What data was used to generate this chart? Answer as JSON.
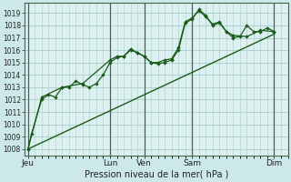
{
  "background_color": "#cce8e8",
  "plot_bg_color": "#ddf0f0",
  "grid_color": "#aacccc",
  "line_color": "#1a5c1a",
  "spine_color": "#446644",
  "title": "Pression niveau de la mer( hPa )",
  "ylim": [
    1007.5,
    1019.8
  ],
  "yticks": [
    1008,
    1009,
    1010,
    1011,
    1012,
    1013,
    1014,
    1015,
    1016,
    1017,
    1018,
    1019
  ],
  "x_day_labels": [
    "Jeu",
    "Lun",
    "Ven",
    "Sam",
    "Dim"
  ],
  "x_day_positions": [
    0,
    12,
    17,
    24,
    36
  ],
  "xlim": [
    -0.5,
    38
  ],
  "series1_x": [
    0,
    0.5,
    2,
    3,
    4,
    5,
    6,
    7,
    8,
    9,
    10,
    11,
    12,
    13,
    14,
    15,
    16,
    17,
    18,
    19,
    20,
    21,
    22,
    23,
    24,
    25,
    26,
    27,
    28,
    29,
    30,
    31,
    32,
    33,
    34,
    35,
    36
  ],
  "series1_y": [
    1008.0,
    1009.2,
    1012.0,
    1012.4,
    1012.2,
    1013.0,
    1013.0,
    1013.5,
    1013.2,
    1013.0,
    1013.3,
    1014.0,
    1015.0,
    1015.4,
    1015.5,
    1016.0,
    1015.8,
    1015.5,
    1015.0,
    1014.9,
    1015.0,
    1015.2,
    1016.0,
    1018.2,
    1018.5,
    1019.3,
    1018.8,
    1018.0,
    1018.2,
    1017.5,
    1017.0,
    1017.1,
    1018.0,
    1017.5,
    1017.5,
    1017.8,
    1017.5
  ],
  "series2_x": [
    0,
    2,
    5,
    8,
    12,
    13,
    14,
    15,
    16,
    17,
    18,
    19,
    20,
    21,
    22,
    23,
    24,
    25,
    26,
    27,
    28,
    29,
    30,
    32,
    34,
    36
  ],
  "series2_y": [
    1008.0,
    1012.2,
    1013.0,
    1013.3,
    1015.2,
    1015.5,
    1015.5,
    1016.1,
    1015.8,
    1015.5,
    1015.0,
    1015.0,
    1015.2,
    1015.3,
    1016.2,
    1018.3,
    1018.6,
    1019.2,
    1018.7,
    1018.1,
    1018.3,
    1017.5,
    1017.2,
    1017.1,
    1017.6,
    1017.5
  ],
  "trend_x": [
    0,
    36
  ],
  "trend_y": [
    1008.0,
    1017.3
  ]
}
